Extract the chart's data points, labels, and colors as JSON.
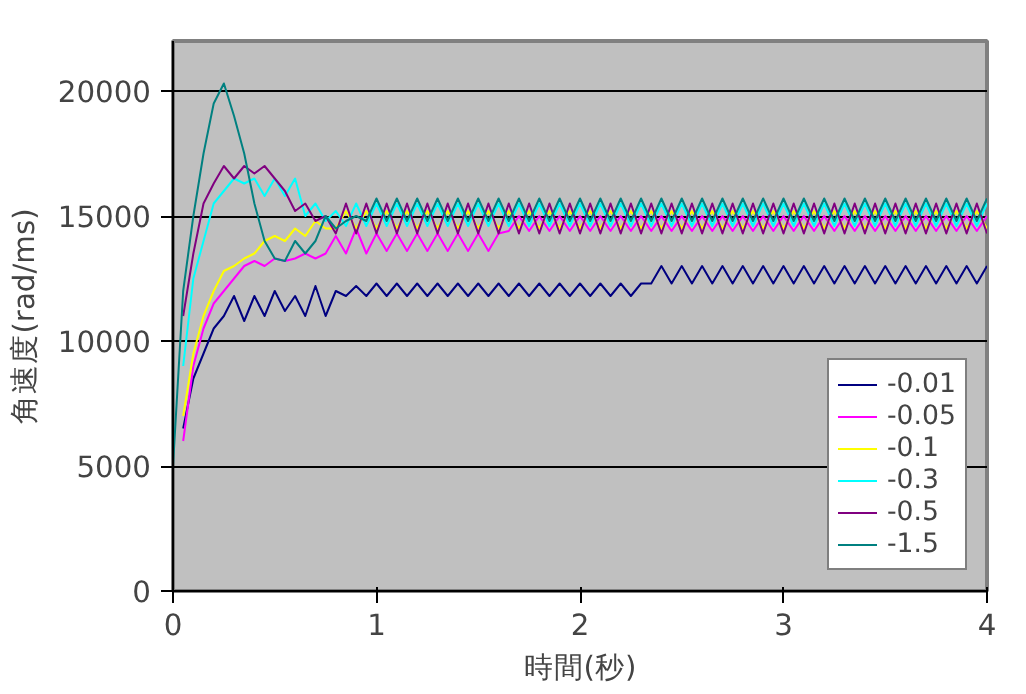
{
  "chart_data": {
    "type": "line",
    "xlabel": "時間(秒)",
    "ylabel": "角速度(rad/ms)",
    "x": [
      0,
      0.05,
      0.1,
      0.15,
      0.2,
      0.25,
      0.3,
      0.35,
      0.4,
      0.45,
      0.5,
      0.55,
      0.6,
      0.65,
      0.7,
      0.75,
      0.8,
      0.85,
      0.9,
      0.95,
      1.0,
      1.05,
      1.1,
      1.15,
      1.2,
      1.25,
      1.3,
      1.35,
      1.4,
      1.45,
      1.5,
      1.55,
      1.6,
      1.65,
      1.7,
      1.75,
      1.8,
      1.85,
      1.9,
      1.95,
      2.0,
      2.05,
      2.1,
      2.15,
      2.2,
      2.25,
      2.3,
      2.35,
      2.4,
      2.45,
      2.5,
      2.55,
      2.6,
      2.65,
      2.7,
      2.75,
      2.8,
      2.85,
      2.9,
      2.95,
      3.0,
      3.05,
      3.1,
      3.15,
      3.2,
      3.25,
      3.3,
      3.35,
      3.4,
      3.45,
      3.5,
      3.55,
      3.6,
      3.65,
      3.7,
      3.75,
      3.8,
      3.85,
      3.9,
      3.95,
      4.0
    ],
    "series": [
      {
        "name": "-0.01",
        "color": "#000080",
        "values": [
          null,
          6500,
          8500,
          9500,
          10500,
          11000,
          11800,
          10800,
          11800,
          11000,
          12000,
          11200,
          11800,
          11000,
          12200,
          11000,
          12000,
          11800,
          12200,
          11800,
          12300,
          11800,
          12300,
          11800,
          12300,
          11800,
          12300,
          11800,
          12300,
          11800,
          12300,
          11800,
          12300,
          11800,
          12300,
          11800,
          12300,
          11800,
          12300,
          11800,
          12300,
          11800,
          12300,
          11800,
          12300,
          11800,
          12300,
          12300,
          13000,
          12300,
          13000,
          12300,
          13000,
          12300,
          13000,
          12300,
          13000,
          12300,
          13000,
          12300,
          13000,
          12300,
          13000,
          12300,
          13000,
          12300,
          13000,
          12300,
          13000,
          12300,
          13000,
          12300,
          13000,
          12300,
          13000,
          12300,
          13000,
          12300,
          13000,
          12300,
          13000
        ]
      },
      {
        "name": "-0.05",
        "color": "#ff00ff",
        "values": [
          null,
          6000,
          9000,
          10500,
          11500,
          12000,
          12500,
          13000,
          13200,
          13000,
          13300,
          13200,
          13300,
          13500,
          13300,
          13500,
          14200,
          13500,
          14500,
          13500,
          14300,
          13600,
          14300,
          13600,
          14300,
          13600,
          14300,
          13600,
          14300,
          13600,
          14300,
          13600,
          14300,
          14400,
          15000,
          14400,
          15000,
          14400,
          15000,
          14400,
          15000,
          14400,
          15000,
          14400,
          15000,
          14400,
          15000,
          14400,
          15000,
          14400,
          15000,
          14400,
          15000,
          14400,
          15000,
          14400,
          15000,
          14400,
          15000,
          14400,
          15000,
          14400,
          15000,
          14400,
          15000,
          14400,
          15000,
          14400,
          15000,
          14400,
          15000,
          14400,
          15000,
          14400,
          15000,
          14400,
          15000,
          14400,
          15000,
          14400,
          15000
        ]
      },
      {
        "name": "-0.1",
        "color": "#ffff00",
        "values": [
          null,
          7000,
          9500,
          11000,
          12000,
          12800,
          13000,
          13300,
          13500,
          14000,
          14200,
          14000,
          14500,
          14200,
          14800,
          14500,
          14500,
          15200,
          14500,
          15200,
          14500,
          15200,
          14500,
          15200,
          14500,
          15200,
          14500,
          15200,
          14500,
          15200,
          14500,
          15200,
          14500,
          15200,
          14500,
          15200,
          14500,
          15200,
          14500,
          15200,
          14500,
          15200,
          14500,
          15200,
          14500,
          15200,
          14500,
          15200,
          14500,
          15200,
          14500,
          15200,
          14500,
          15200,
          14500,
          15200,
          14500,
          15200,
          14500,
          15200,
          14500,
          15200,
          14500,
          15200,
          14500,
          15200,
          14500,
          15200,
          14500,
          15200,
          14500,
          15200,
          14500,
          15200,
          14500,
          15200,
          14500,
          15200,
          14500,
          15200,
          14500
        ]
      },
      {
        "name": "-0.3",
        "color": "#00ffff",
        "values": [
          null,
          9000,
          12500,
          14000,
          15500,
          16000,
          16500,
          16300,
          16500,
          15800,
          16500,
          15800,
          16500,
          15000,
          15500,
          14800,
          15200,
          14600,
          15500,
          14600,
          15500,
          14600,
          15500,
          14600,
          15500,
          14600,
          15500,
          14600,
          15500,
          14600,
          15500,
          14600,
          15500,
          14600,
          15500,
          14600,
          15500,
          14600,
          15500,
          14600,
          15500,
          14600,
          15500,
          14600,
          15500,
          14600,
          15500,
          14600,
          15500,
          14600,
          15500,
          14600,
          15500,
          14600,
          15500,
          14600,
          15500,
          14600,
          15500,
          14600,
          15500,
          14600,
          15500,
          14600,
          15500,
          14600,
          15500,
          14600,
          15500,
          14600,
          15500,
          14600,
          15500,
          14600,
          15500,
          14600,
          15500,
          14600,
          15500,
          14600,
          15500
        ]
      },
      {
        "name": "-0.5",
        "color": "#800080",
        "values": [
          null,
          11000,
          13500,
          15500,
          16300,
          17000,
          16500,
          17000,
          16700,
          17000,
          16500,
          16000,
          15200,
          15500,
          14800,
          15000,
          14300,
          15500,
          14300,
          15500,
          14300,
          15500,
          14300,
          15500,
          14300,
          15500,
          14300,
          15500,
          14300,
          15500,
          14300,
          15500,
          14300,
          15500,
          14300,
          15500,
          14300,
          15500,
          14300,
          15500,
          14300,
          15500,
          14300,
          15500,
          14300,
          15500,
          14300,
          15500,
          14300,
          15500,
          14300,
          15500,
          14300,
          15500,
          14300,
          15500,
          14300,
          15500,
          14300,
          15500,
          14300,
          15500,
          14300,
          15500,
          14300,
          15500,
          14300,
          15500,
          14300,
          15500,
          14300,
          15500,
          14300,
          15500,
          14300,
          15500,
          14300,
          15500,
          14300,
          15500,
          14300
        ]
      },
      {
        "name": "-1.5",
        "color": "#008080",
        "values": [
          5000,
          12000,
          15000,
          17500,
          19500,
          20300,
          19000,
          17500,
          15500,
          14000,
          13300,
          13200,
          14000,
          13500,
          14000,
          15000,
          14500,
          14800,
          15000,
          14800,
          15700,
          14800,
          15700,
          14800,
          15700,
          14800,
          15700,
          14800,
          15700,
          14800,
          15700,
          14800,
          15700,
          14800,
          15700,
          14800,
          15700,
          14800,
          15700,
          14800,
          15700,
          14800,
          15700,
          14800,
          15700,
          14800,
          15700,
          14800,
          15700,
          14800,
          15700,
          14800,
          15700,
          14800,
          15700,
          14800,
          15700,
          14800,
          15700,
          14800,
          15700,
          14800,
          15700,
          14800,
          15700,
          14800,
          15700,
          14800,
          15700,
          14800,
          15700,
          14800,
          15700,
          14800,
          15700,
          14800,
          15700,
          14800,
          15700,
          14800,
          15700
        ]
      }
    ],
    "xlim": [
      0,
      4
    ],
    "ylim": [
      0,
      22000
    ],
    "xticks": [
      0,
      1,
      2,
      3,
      4
    ],
    "yticks": [
      0,
      5000,
      10000,
      15000,
      20000
    ],
    "grid": "y",
    "legend": "bottom right",
    "marker": "none",
    "line_style": "solid"
  }
}
